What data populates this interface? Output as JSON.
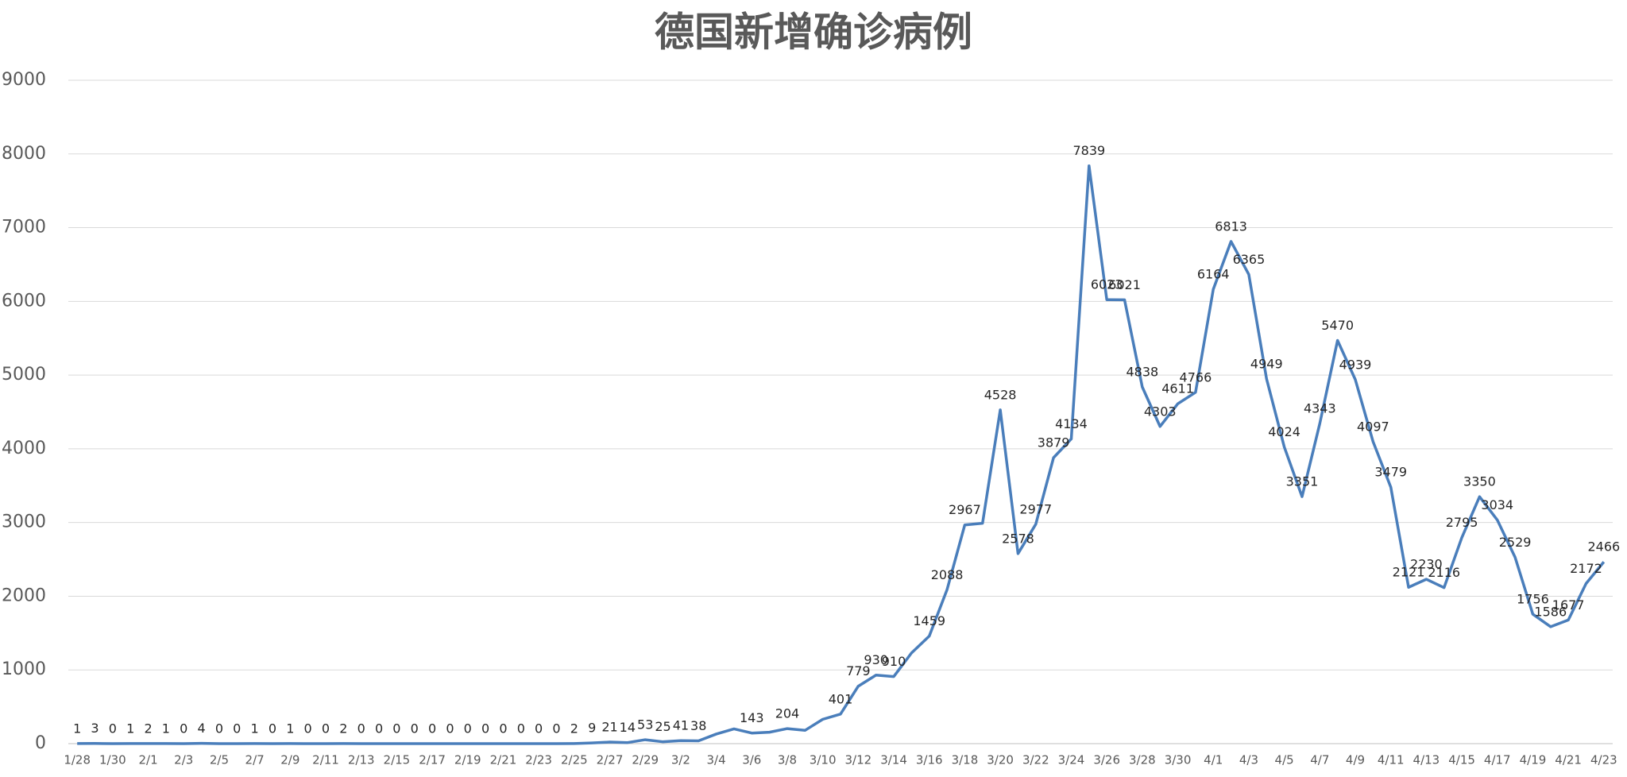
{
  "chart_data": {
    "type": "line",
    "title": "德国新增确诊病例",
    "categories": [
      "1/28",
      null,
      "1/30",
      null,
      "2/1",
      null,
      "2/3",
      null,
      "2/5",
      null,
      "2/7",
      null,
      "2/9",
      null,
      "2/11",
      null,
      "2/13",
      null,
      "2/15",
      null,
      "2/17",
      null,
      "2/19",
      null,
      "2/21",
      null,
      "2/23",
      null,
      "2/25",
      null,
      "2/27",
      null,
      "2/29",
      null,
      "3/2",
      null,
      "3/4",
      null,
      "3/6",
      null,
      "3/8",
      null,
      "3/10",
      null,
      "3/12",
      null,
      "3/14",
      null,
      "3/16",
      null,
      "3/18",
      null,
      "3/20",
      null,
      "3/22",
      null,
      "3/24",
      null,
      "3/26",
      null,
      "3/28",
      null,
      "3/30",
      null,
      "4/1",
      null,
      "4/3",
      null,
      "4/5",
      null,
      "4/7",
      null,
      "4/9",
      null,
      "4/11",
      null,
      "4/13",
      null,
      "4/15",
      null,
      "4/17",
      null,
      "4/19",
      null,
      "4/21",
      null,
      "4/23"
    ],
    "values": [
      1,
      3,
      0,
      1,
      2,
      1,
      0,
      4,
      0,
      0,
      1,
      0,
      1,
      0,
      0,
      2,
      0,
      0,
      0,
      0,
      0,
      0,
      0,
      0,
      0,
      0,
      0,
      0,
      2,
      9,
      21,
      14,
      53,
      25,
      41,
      38,
      130,
      200,
      143,
      155,
      204,
      180,
      330,
      401,
      779,
      930,
      910,
      1230,
      1459,
      2088,
      2967,
      2990,
      4528,
      2578,
      2977,
      3879,
      4134,
      7839,
      6023,
      6021,
      4838,
      4303,
      4611,
      4766,
      6164,
      6813,
      6365,
      4949,
      4024,
      3351,
      4343,
      5470,
      4939,
      4097,
      3479,
      2121,
      2230,
      2116,
      2795,
      3350,
      3034,
      2529,
      1756,
      1586,
      1677,
      2172,
      2466
    ],
    "value_labels": [
      "1",
      "3",
      "0",
      "1",
      "2",
      "1",
      "0",
      "4",
      "0",
      "0",
      "1",
      "0",
      "1",
      "0",
      "0",
      "2",
      "0",
      "0",
      "0",
      "0",
      "0",
      "0",
      "0",
      "0",
      "0",
      "0",
      "0",
      "0",
      "2",
      "9",
      "21",
      "14",
      "53",
      "25",
      "41",
      "38",
      null,
      null,
      "143",
      null,
      "204",
      null,
      null,
      "401",
      "779",
      "930",
      "910",
      null,
      "1459",
      "2088",
      "2967",
      null,
      "4528",
      "2578",
      "2977",
      "3879",
      "4134",
      "7839",
      "6023",
      "6021",
      "4838",
      "4303",
      "4611",
      "4766",
      "6164",
      "6813",
      "6365",
      "4949",
      "4024",
      "3351",
      "4343",
      "5470",
      "4939",
      "4097",
      "3479",
      "2121",
      "2230",
      "2116",
      "2795",
      "3350",
      "3034",
      "2529",
      "1756",
      "1586",
      "1677",
      "2172",
      "2466"
    ],
    "color": "#4a7ebb",
    "ylim": [
      0,
      9000
    ],
    "yticks": [
      0,
      1000,
      2000,
      3000,
      4000,
      5000,
      6000,
      7000,
      8000,
      9000
    ],
    "grid": true
  }
}
